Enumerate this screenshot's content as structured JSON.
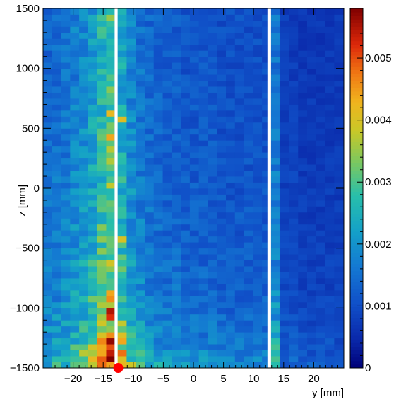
{
  "chart_data": {
    "type": "heatmap",
    "title": "",
    "xlabel": "y [mm]",
    "ylabel": "z [mm]",
    "xlim": [
      -25,
      25
    ],
    "ylim": [
      -1500,
      1500
    ],
    "x_ticks": [
      -20,
      -15,
      -10,
      -5,
      0,
      5,
      10,
      15,
      20
    ],
    "x_tick_labels": [
      "−20",
      "−15",
      "−10",
      "−5",
      "0",
      "5",
      "10",
      "15",
      "20"
    ],
    "y_ticks": [
      -1500,
      -1000,
      -500,
      0,
      500,
      1000,
      1500
    ],
    "y_tick_labels": [
      "−1500",
      "−1000",
      "−500",
      "0",
      "500",
      "1000",
      "1500"
    ],
    "colorbar": {
      "range": [
        0,
        0.0058
      ],
      "ticks": [
        0,
        0.001,
        0.002,
        0.003,
        0.004,
        0.005
      ],
      "tick_labels": [
        "0",
        "0.001",
        "0.002",
        "0.003",
        "0.004",
        "0.005"
      ],
      "colormap": "kBird-like (dark blue → cyan → yellow → red → dark red)"
    },
    "grid": {
      "y_bin_edges_mm": [
        -25,
        -23.5,
        -22,
        -20.5,
        -19,
        -17.5,
        -16,
        -14.5,
        -13.1,
        -12.6,
        -11.1,
        -9.6,
        -8.1,
        -6.6,
        -5.1,
        -3.6,
        -2.1,
        -0.6,
        0.9,
        2.4,
        3.9,
        5.4,
        6.9,
        8.4,
        9.9,
        11.4,
        12.9,
        14.4,
        15.9,
        17.4,
        18.9,
        20.4,
        21.9,
        23.4,
        25
      ],
      "z_bins": 60,
      "z_bin_width_mm": 50
    },
    "profiles": {
      "y_centers_mm": [
        -24.25,
        -22.75,
        -21.25,
        -19.75,
        -18.25,
        -16.75,
        -15.25,
        -13.8,
        -12.85,
        -11.85,
        -10.35,
        -8.85,
        -7.35,
        -5.85,
        -4.35,
        -2.85,
        -1.35,
        0.15,
        1.65,
        3.15,
        4.65,
        6.15,
        7.65,
        9.15,
        10.65,
        12.15,
        13.65,
        15.15,
        16.65,
        18.15,
        19.65,
        21.15,
        22.65,
        24.2
      ],
      "y_profile_mean_value": [
        0.0016,
        0.0017,
        0.0018,
        0.002,
        0.0022,
        0.0025,
        0.003,
        0.0034,
        0.0022,
        0.0027,
        0.0021,
        0.0018,
        0.0016,
        0.0015,
        0.0014,
        0.0014,
        0.0013,
        0.0013,
        0.0013,
        0.0013,
        0.0012,
        0.0012,
        0.0012,
        0.0012,
        0.0012,
        0.0012,
        0.0018,
        0.0009,
        0.0009,
        0.0008,
        0.0008,
        0.0008,
        0.0008,
        0.0008
      ],
      "z_profile_anchors_mm": [
        -1500,
        -1400,
        -1250,
        -1000,
        -500,
        0,
        500,
        1000,
        1500
      ],
      "z_profile_factor": [
        1.55,
        1.45,
        1.25,
        1.1,
        0.98,
        0.93,
        0.88,
        0.85,
        0.85
      ]
    },
    "hot_spots": [
      {
        "y": -13.8,
        "z": -1025,
        "value": 0.0055
      },
      {
        "y": -13.8,
        "z": -1075,
        "value": 0.0052
      },
      {
        "y": -13.8,
        "z": -1275,
        "value": 0.0057
      },
      {
        "y": -13.8,
        "z": -1325,
        "value": 0.005
      },
      {
        "y": -13.8,
        "z": -1375,
        "value": 0.0054
      },
      {
        "y": -13.8,
        "z": -1425,
        "value": 0.0058
      },
      {
        "y": -13.8,
        "z": -1225,
        "value": 0.0046
      },
      {
        "y": -11.85,
        "z": -1375,
        "value": 0.0048
      },
      {
        "y": -11.85,
        "z": -1275,
        "value": 0.0044
      },
      {
        "y": -13.8,
        "z": -875,
        "value": 0.0044
      },
      {
        "y": -13.8,
        "z": -925,
        "value": 0.0046
      },
      {
        "y": -13.8,
        "z": 425,
        "value": 0.0044
      },
      {
        "y": -13.8,
        "z": 625,
        "value": 0.0042
      },
      {
        "y": -11.85,
        "z": 575,
        "value": 0.0041
      },
      {
        "y": -11.85,
        "z": -425,
        "value": 0.004
      }
    ],
    "masked_y_ranges_mm": [
      [
        -13.1,
        -12.6
      ],
      [
        12.3,
        12.9
      ]
    ],
    "marker": {
      "y": -12.5,
      "z": -1500,
      "color": "#ff0000"
    }
  }
}
